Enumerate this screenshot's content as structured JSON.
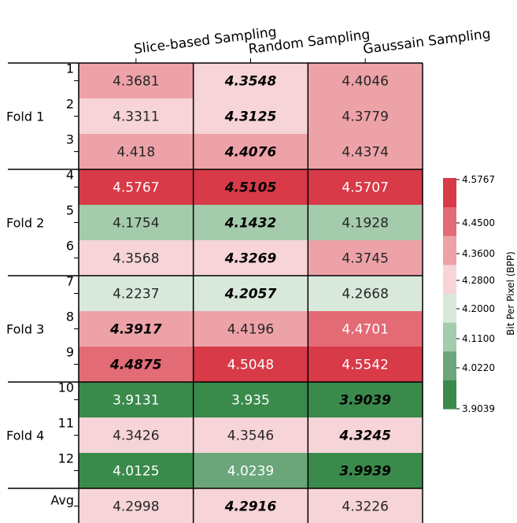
{
  "chart_data": {
    "type": "heatmap",
    "columns": [
      "Slice-based Sampling",
      "Random Sampling",
      "Gaussain Sampling"
    ],
    "rows": [
      "1",
      "2",
      "3",
      "4",
      "5",
      "6",
      "7",
      "8",
      "9",
      "10",
      "11",
      "12",
      "Avg"
    ],
    "groups": [
      {
        "label": "Fold 1",
        "rows": [
          0,
          2
        ]
      },
      {
        "label": "Fold 2",
        "rows": [
          3,
          5
        ]
      },
      {
        "label": "Fold 3",
        "rows": [
          6,
          8
        ]
      },
      {
        "label": "Fold 4",
        "rows": [
          9,
          11
        ]
      }
    ],
    "values": [
      [
        "4.3681",
        "4.3548",
        "4.4046"
      ],
      [
        "4.3311",
        "4.3125",
        "4.3779"
      ],
      [
        "4.418",
        "4.4076",
        "4.4374"
      ],
      [
        "4.5767",
        "4.5105",
        "4.5707"
      ],
      [
        "4.1754",
        "4.1432",
        "4.1928"
      ],
      [
        "4.3568",
        "4.3269",
        "4.3745"
      ],
      [
        "4.2237",
        "4.2057",
        "4.2668"
      ],
      [
        "4.3917",
        "4.4196",
        "4.4701"
      ],
      [
        "4.4875",
        "4.5048",
        "4.5542"
      ],
      [
        "3.9131",
        "3.935",
        "3.9039"
      ],
      [
        "4.3426",
        "4.3546",
        "4.3245"
      ],
      [
        "4.0125",
        "4.0239",
        "3.9939"
      ],
      [
        "4.2998",
        "4.2916",
        "4.3226"
      ]
    ],
    "bold_italic": [
      [
        false,
        true,
        false
      ],
      [
        false,
        true,
        false
      ],
      [
        false,
        true,
        false
      ],
      [
        false,
        true,
        false
      ],
      [
        false,
        true,
        false
      ],
      [
        false,
        true,
        false
      ],
      [
        false,
        true,
        false
      ],
      [
        true,
        false,
        false
      ],
      [
        true,
        false,
        false
      ],
      [
        false,
        false,
        true
      ],
      [
        false,
        false,
        true
      ],
      [
        false,
        false,
        true
      ],
      [
        false,
        true,
        false
      ]
    ],
    "colorbar": {
      "label": "Bit Per Pixel (BPP)",
      "ticks": [
        "4.5767",
        "4.4500",
        "4.3600",
        "4.2800",
        "4.2000",
        "4.1100",
        "4.0220",
        "3.9039"
      ],
      "bins": [
        {
          "min": 3.9039,
          "max": 4.022,
          "color": "#3a8a4c"
        },
        {
          "min": 4.022,
          "max": 4.11,
          "color": "#6aa67a"
        },
        {
          "min": 4.11,
          "max": 4.2,
          "color": "#a4cbab"
        },
        {
          "min": 4.2,
          "max": 4.28,
          "color": "#d8e9dc"
        },
        {
          "min": 4.28,
          "max": 4.36,
          "color": "#f6d4d7"
        },
        {
          "min": 4.36,
          "max": 4.45,
          "color": "#eda2a8"
        },
        {
          "min": 4.45,
          "max": 4.5,
          "color": "#e36b76"
        },
        {
          "min": 4.5,
          "max": 4.5767,
          "color": "#d83a48"
        }
      ]
    }
  }
}
